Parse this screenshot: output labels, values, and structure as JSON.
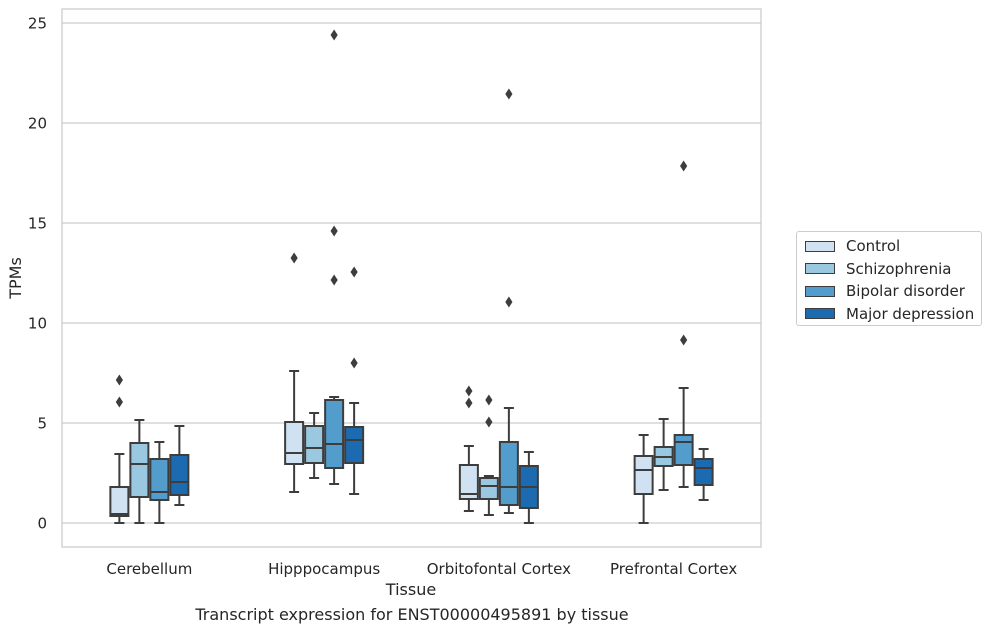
{
  "caption": "Transcript expression for ENST00000495891 by tissue",
  "chart_data": {
    "type": "box",
    "xlabel": "Tissue",
    "ylabel": "TPMs",
    "ylim": [
      -1.2,
      25.7
    ],
    "yticks": [
      0,
      5,
      10,
      15,
      20,
      25
    ],
    "grid": true,
    "legend_position": "right",
    "categories": [
      "Cerebellum",
      "Hipppocampus",
      "Orbitofontal Cortex",
      "Prefrontal Cortex"
    ],
    "series": [
      {
        "name": "Control",
        "color": "#d0e2f1",
        "boxes": [
          {
            "whislo": 0.0,
            "q1": 0.35,
            "med": 0.45,
            "q3": 1.8,
            "whishi": 3.45,
            "fliers": [
              6.05,
              7.15
            ]
          },
          {
            "whislo": 1.55,
            "q1": 2.95,
            "med": 3.5,
            "q3": 5.05,
            "whishi": 7.6,
            "fliers": [
              13.25
            ]
          },
          {
            "whislo": 0.6,
            "q1": 1.2,
            "med": 1.45,
            "q3": 2.9,
            "whishi": 3.85,
            "fliers": [
              6.0,
              6.6
            ]
          },
          {
            "whislo": 0.0,
            "q1": 1.45,
            "med": 2.65,
            "q3": 3.35,
            "whishi": 4.4,
            "fliers": []
          }
        ]
      },
      {
        "name": "Schizophrenia",
        "color": "#9ac8e0",
        "boxes": [
          {
            "whislo": 0.0,
            "q1": 1.3,
            "med": 2.95,
            "q3": 4.0,
            "whishi": 5.15,
            "fliers": []
          },
          {
            "whislo": 2.25,
            "q1": 3.0,
            "med": 3.75,
            "q3": 4.85,
            "whishi": 5.5,
            "fliers": []
          },
          {
            "whislo": 0.4,
            "q1": 1.2,
            "med": 1.85,
            "q3": 2.25,
            "whishi": 2.35,
            "fliers": [
              5.05,
              6.15
            ]
          },
          {
            "whislo": 1.65,
            "q1": 2.85,
            "med": 3.3,
            "q3": 3.8,
            "whishi": 5.2,
            "fliers": []
          }
        ]
      },
      {
        "name": "Bipolar disorder",
        "color": "#529dcc",
        "boxes": [
          {
            "whislo": 0.0,
            "q1": 1.15,
            "med": 1.55,
            "q3": 3.2,
            "whishi": 4.05,
            "fliers": []
          },
          {
            "whislo": 1.95,
            "q1": 2.75,
            "med": 3.95,
            "q3": 6.15,
            "whishi": 6.3,
            "fliers": [
              12.15,
              14.6,
              24.4
            ]
          },
          {
            "whislo": 0.5,
            "q1": 0.9,
            "med": 1.8,
            "q3": 4.05,
            "whishi": 5.75,
            "fliers": [
              11.05,
              21.45
            ]
          },
          {
            "whislo": 1.8,
            "q1": 2.9,
            "med": 4.05,
            "q3": 4.4,
            "whishi": 6.75,
            "fliers": [
              9.15,
              17.85
            ]
          }
        ]
      },
      {
        "name": "Major depression",
        "color": "#1c6aaf",
        "boxes": [
          {
            "whislo": 0.9,
            "q1": 1.4,
            "med": 2.05,
            "q3": 3.4,
            "whishi": 4.85,
            "fliers": []
          },
          {
            "whislo": 1.45,
            "q1": 3.0,
            "med": 4.15,
            "q3": 4.8,
            "whishi": 6.0,
            "fliers": [
              8.0,
              12.55
            ]
          },
          {
            "whislo": 0.0,
            "q1": 0.75,
            "med": 1.8,
            "q3": 2.85,
            "whishi": 3.55,
            "fliers": []
          },
          {
            "whislo": 1.15,
            "q1": 1.9,
            "med": 2.75,
            "q3": 3.2,
            "whishi": 3.7,
            "fliers": []
          }
        ]
      }
    ]
  }
}
